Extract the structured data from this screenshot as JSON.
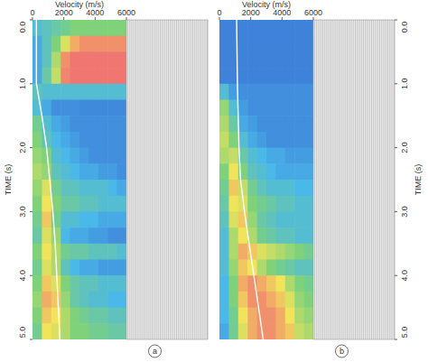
{
  "chart_data": [
    {
      "type": "heatmap",
      "title": "a",
      "xlabel": "Velocity (m/s)",
      "ylabel": "TIME (s)",
      "xlim": [
        0,
        6000
      ],
      "xticks": [
        0,
        2000,
        4000,
        6000
      ],
      "ylim": [
        0,
        5
      ],
      "yticks": [
        {
          "value": 0,
          "label": "0.0"
        },
        {
          "value": 1,
          "label": "1.0"
        },
        {
          "value": 2,
          "label": "2.0"
        },
        {
          "value": 3,
          "label": "3.0"
        },
        {
          "value": 4,
          "label": "4.0"
        },
        {
          "value": 5,
          "label": "5.0"
        }
      ],
      "x_bins": [
        0,
        600,
        1200,
        1800,
        2400,
        3000,
        3600,
        4200,
        4800,
        5400,
        6000
      ],
      "y_bins": [
        0,
        0.25,
        0.5,
        0.75,
        1,
        1.25,
        1.5,
        1.75,
        2,
        2.25,
        2.5,
        2.75,
        3,
        3.25,
        3.5,
        3.75,
        4,
        4.25,
        4.5,
        4.75,
        5
      ],
      "clim": [
        0,
        1
      ],
      "colormap": [
        "#3b74d6",
        "#4ab8e8",
        "#7fd27a",
        "#f2e45a",
        "#ef5a78"
      ],
      "cells": [
        [
          0.3,
          0.35,
          0.4,
          0.45,
          0.5,
          0.5,
          0.5,
          0.5,
          0.5,
          0.5
        ],
        [
          0.2,
          0.35,
          0.5,
          0.7,
          0.85,
          0.9,
          0.9,
          0.9,
          0.9,
          0.9
        ],
        [
          0.2,
          0.35,
          0.6,
          0.9,
          0.95,
          0.95,
          0.95,
          0.95,
          0.95,
          0.95
        ],
        [
          0.2,
          0.4,
          0.65,
          0.92,
          0.95,
          0.95,
          0.95,
          0.95,
          0.95,
          0.95
        ],
        [
          0.35,
          0.3,
          0.3,
          0.3,
          0.3,
          0.3,
          0.3,
          0.3,
          0.3,
          0.3
        ],
        [
          0.3,
          0.2,
          0.1,
          0.1,
          0.1,
          0.08,
          0.08,
          0.08,
          0.08,
          0.08
        ],
        [
          0.45,
          0.3,
          0.2,
          0.15,
          0.1,
          0.1,
          0.1,
          0.1,
          0.1,
          0.1
        ],
        [
          0.5,
          0.35,
          0.25,
          0.2,
          0.15,
          0.1,
          0.1,
          0.1,
          0.1,
          0.1
        ],
        [
          0.55,
          0.5,
          0.3,
          0.25,
          0.2,
          0.15,
          0.1,
          0.1,
          0.1,
          0.1
        ],
        [
          0.6,
          0.55,
          0.35,
          0.3,
          0.25,
          0.2,
          0.2,
          0.15,
          0.15,
          0.1
        ],
        [
          0.55,
          0.7,
          0.45,
          0.35,
          0.35,
          0.3,
          0.3,
          0.3,
          0.25,
          0.2
        ],
        [
          0.5,
          0.75,
          0.5,
          0.4,
          0.4,
          0.35,
          0.35,
          0.3,
          0.3,
          0.3
        ],
        [
          0.45,
          0.8,
          0.45,
          0.3,
          0.3,
          0.25,
          0.25,
          0.2,
          0.2,
          0.2
        ],
        [
          0.4,
          0.7,
          0.55,
          0.25,
          0.2,
          0.2,
          0.15,
          0.15,
          0.1,
          0.1
        ],
        [
          0.5,
          0.75,
          0.6,
          0.45,
          0.4,
          0.4,
          0.35,
          0.35,
          0.35,
          0.3
        ],
        [
          0.45,
          0.7,
          0.6,
          0.35,
          0.25,
          0.2,
          0.2,
          0.15,
          0.15,
          0.15
        ],
        [
          0.5,
          0.8,
          0.7,
          0.5,
          0.4,
          0.35,
          0.35,
          0.3,
          0.3,
          0.3
        ],
        [
          0.55,
          0.85,
          0.8,
          0.55,
          0.4,
          0.35,
          0.3,
          0.3,
          0.25,
          0.25
        ],
        [
          0.5,
          0.8,
          0.75,
          0.6,
          0.5,
          0.45,
          0.4,
          0.4,
          0.35,
          0.35
        ],
        [
          0.45,
          0.75,
          0.7,
          0.6,
          0.5,
          0.5,
          0.45,
          0.45,
          0.4,
          0.4
        ]
      ],
      "line": {
        "times": [
          0,
          1,
          1.5,
          2,
          2.5,
          3,
          3.5,
          4,
          4.5,
          5
        ],
        "velocities": [
          250,
          250,
          600,
          900,
          1100,
          1300,
          1450,
          1550,
          1650,
          1750
        ],
        "color": "#ffffff"
      }
    },
    {
      "type": "heatmap",
      "title": "b",
      "xlabel": "Velocity (m/s)",
      "ylabel": "TIME (s)",
      "xlim": [
        0,
        6000
      ],
      "xticks": [
        0,
        2000,
        4000,
        6000
      ],
      "ylim": [
        0,
        5
      ],
      "yticks": [
        {
          "value": 0,
          "label": "0.0"
        },
        {
          "value": 1,
          "label": "1.0"
        },
        {
          "value": 2,
          "label": "2.0"
        },
        {
          "value": 3,
          "label": "3.0"
        },
        {
          "value": 4,
          "label": "4.0"
        },
        {
          "value": 5,
          "label": "5.0"
        }
      ],
      "x_bins": [
        0,
        600,
        1200,
        1800,
        2400,
        3000,
        3600,
        4200,
        4800,
        5400,
        6000
      ],
      "y_bins": [
        0,
        0.25,
        0.5,
        0.75,
        1,
        1.25,
        1.5,
        1.75,
        2,
        2.25,
        2.5,
        2.75,
        3,
        3.25,
        3.5,
        3.75,
        4,
        4.25,
        4.5,
        4.75,
        5
      ],
      "clim": [
        0,
        1
      ],
      "colormap": [
        "#3b74d6",
        "#4ab8e8",
        "#7fd27a",
        "#f2e45a",
        "#ef5a78"
      ],
      "cells": [
        [
          0.05,
          0.05,
          0.05,
          0.05,
          0.05,
          0.05,
          0.05,
          0.05,
          0.05,
          0.05
        ],
        [
          0.05,
          0.05,
          0.05,
          0.05,
          0.05,
          0.05,
          0.05,
          0.05,
          0.05,
          0.05
        ],
        [
          0.05,
          0.05,
          0.05,
          0.05,
          0.05,
          0.05,
          0.05,
          0.05,
          0.05,
          0.05
        ],
        [
          0.05,
          0.05,
          0.05,
          0.05,
          0.05,
          0.05,
          0.05,
          0.05,
          0.05,
          0.05
        ],
        [
          0.3,
          0.15,
          0.1,
          0.1,
          0.1,
          0.1,
          0.1,
          0.1,
          0.1,
          0.1
        ],
        [
          0.55,
          0.3,
          0.15,
          0.1,
          0.1,
          0.1,
          0.1,
          0.1,
          0.1,
          0.1
        ],
        [
          0.6,
          0.4,
          0.2,
          0.15,
          0.1,
          0.1,
          0.1,
          0.1,
          0.1,
          0.1
        ],
        [
          0.65,
          0.5,
          0.3,
          0.2,
          0.15,
          0.1,
          0.1,
          0.1,
          0.1,
          0.1
        ],
        [
          0.6,
          0.65,
          0.4,
          0.3,
          0.25,
          0.2,
          0.2,
          0.15,
          0.15,
          0.15
        ],
        [
          0.5,
          0.75,
          0.5,
          0.35,
          0.3,
          0.25,
          0.2,
          0.2,
          0.2,
          0.2
        ],
        [
          0.45,
          0.8,
          0.65,
          0.45,
          0.35,
          0.3,
          0.3,
          0.3,
          0.25,
          0.25
        ],
        [
          0.4,
          0.75,
          0.7,
          0.5,
          0.45,
          0.4,
          0.35,
          0.35,
          0.3,
          0.3
        ],
        [
          0.35,
          0.7,
          0.8,
          0.55,
          0.4,
          0.35,
          0.3,
          0.3,
          0.3,
          0.3
        ],
        [
          0.3,
          0.6,
          0.75,
          0.6,
          0.45,
          0.4,
          0.35,
          0.35,
          0.3,
          0.3
        ],
        [
          0.3,
          0.6,
          0.85,
          0.8,
          0.7,
          0.65,
          0.6,
          0.55,
          0.5,
          0.45
        ],
        [
          0.3,
          0.55,
          0.8,
          0.75,
          0.6,
          0.5,
          0.45,
          0.4,
          0.35,
          0.35
        ],
        [
          0.25,
          0.5,
          0.85,
          0.9,
          0.85,
          0.8,
          0.75,
          0.6,
          0.5,
          0.45
        ],
        [
          0.25,
          0.5,
          0.8,
          0.9,
          0.9,
          0.85,
          0.8,
          0.7,
          0.55,
          0.5
        ],
        [
          0.25,
          0.45,
          0.75,
          0.85,
          0.9,
          0.9,
          0.85,
          0.75,
          0.6,
          0.55
        ],
        [
          0.2,
          0.45,
          0.7,
          0.85,
          0.9,
          0.9,
          0.85,
          0.8,
          0.65,
          0.6
        ]
      ],
      "line": {
        "times": [
          0,
          1,
          1.5,
          2,
          2.5,
          3,
          3.5,
          4,
          4.5,
          5
        ],
        "velocities": [
          1100,
          1150,
          1200,
          1250,
          1350,
          1600,
          1900,
          2200,
          2500,
          2800
        ],
        "color": "#ffffff"
      }
    }
  ]
}
